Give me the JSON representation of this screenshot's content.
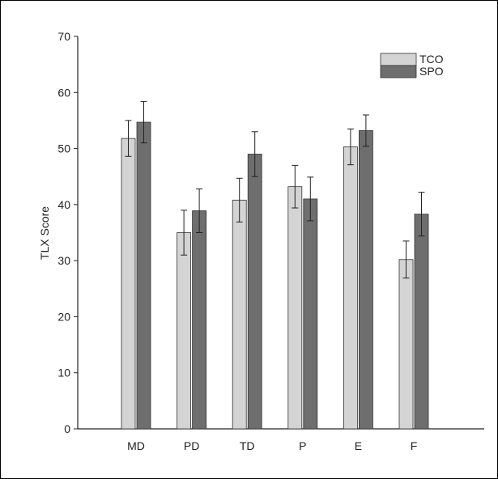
{
  "chart_data": {
    "type": "bar",
    "title": "",
    "xlabel": "",
    "ylabel": "TLX Score",
    "categories": [
      "MD",
      "PD",
      "TD",
      "P",
      "E",
      "F"
    ],
    "ylim": [
      0,
      70
    ],
    "yticks": [
      0,
      10,
      20,
      30,
      40,
      50,
      60,
      70
    ],
    "grid": false,
    "legend_position": "top-right",
    "series": [
      {
        "name": "TCO",
        "color": "#d4d4d4",
        "values": [
          51.8,
          35.0,
          40.8,
          43.2,
          50.3,
          30.2
        ],
        "error": [
          3.2,
          4.0,
          3.9,
          3.8,
          3.2,
          3.3
        ]
      },
      {
        "name": "SPO",
        "color": "#6e6e6e",
        "values": [
          54.7,
          38.9,
          49.0,
          41.0,
          53.2,
          38.3
        ],
        "error": [
          3.7,
          3.9,
          4.0,
          3.9,
          2.8,
          3.9
        ]
      }
    ]
  }
}
